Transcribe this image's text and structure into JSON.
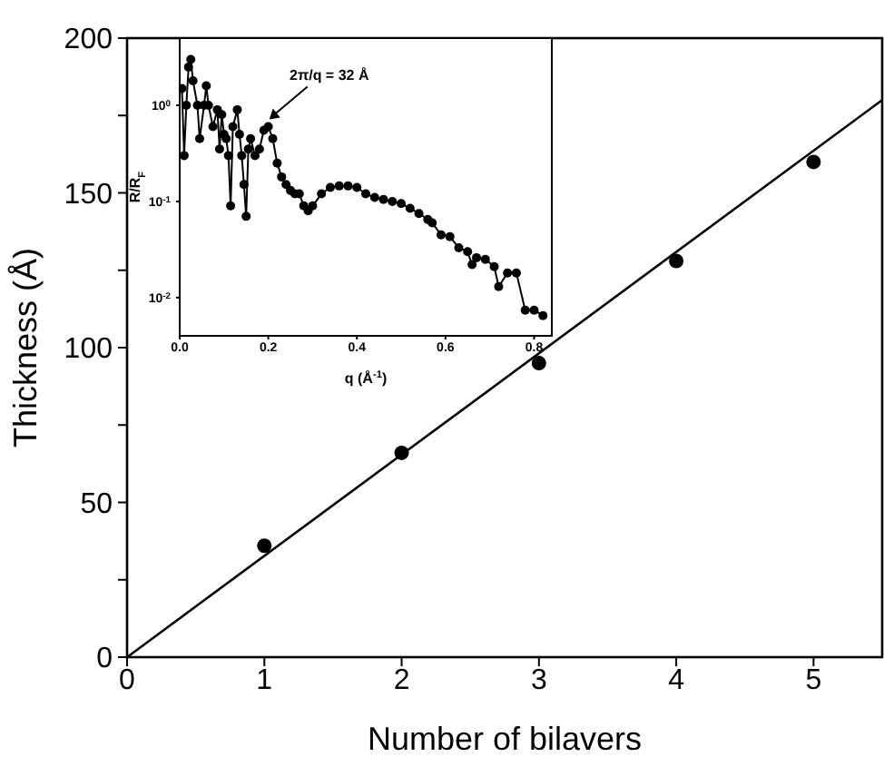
{
  "chart_data": [
    {
      "type": "scatter",
      "xlabel": "Number of bilavers",
      "ylabel": "Thickness (Å)",
      "xlim": [
        0,
        5.5
      ],
      "xticks": [
        0,
        1,
        2,
        3,
        4,
        5
      ],
      "ylim": [
        0,
        200
      ],
      "yticks": [
        0,
        {
          "value": 25,
          "label": null
        },
        50,
        {
          "value": 75,
          "label": null
        },
        100,
        {
          "value": 125,
          "label": null
        },
        150,
        {
          "value": 175,
          "label": null
        },
        200
      ],
      "marker": "circle",
      "series": [
        {
          "color": "#000000",
          "x": [
            1,
            2,
            3,
            4,
            5
          ],
          "values": [
            36,
            66,
            95,
            128,
            160
          ]
        },
        {
          "type": "line",
          "color": "#000000",
          "marker": "none",
          "x": [
            0,
            5.5
          ],
          "values": [
            0,
            180
          ]
        }
      ]
    },
    {
      "type": "line",
      "xlabel": "q (Å$^{-1}$)",
      "ylabel": "R/R$_{F}$",
      "log": "y",
      "xlim": [
        0,
        0.84
      ],
      "xticks": [
        {
          "value": 0,
          "label": "0.0"
        },
        0.2,
        0.4,
        0.6,
        0.8
      ],
      "ylim": [
        0.004,
        5
      ],
      "yticks": [
        {
          "value": 0.01,
          "label": "10$^{-2}$"
        },
        {
          "value": 0.1,
          "label": "10$^{-1}$"
        },
        {
          "value": 1,
          "label": "10$^{0}$"
        }
      ],
      "marker": "circle",
      "annotations": [
        {
          "text": "2π/q = 32 Å",
          "x": 0.19,
          "y": 0.6
        }
      ],
      "series": [
        {
          "color": "#000000",
          "x": [
            0.005,
            0.01,
            0.015,
            0.02,
            0.025,
            0.03,
            0.04,
            0.045,
            0.055,
            0.06,
            0.065,
            0.075,
            0.085,
            0.09,
            0.095,
            0.1,
            0.105,
            0.11,
            0.115,
            0.12,
            0.13,
            0.135,
            0.14,
            0.145,
            0.15,
            0.155,
            0.16,
            0.17,
            0.18,
            0.19,
            0.2,
            0.21,
            0.22,
            0.23,
            0.24,
            0.25,
            0.26,
            0.27,
            0.28,
            0.29,
            0.3,
            0.32,
            0.34,
            0.36,
            0.38,
            0.4,
            0.42,
            0.44,
            0.46,
            0.48,
            0.5,
            0.52,
            0.54,
            0.56,
            0.57,
            0.59,
            0.61,
            0.63,
            0.65,
            0.66,
            0.67,
            0.69,
            0.71,
            0.72,
            0.74,
            0.76,
            0.78,
            0.8,
            0.82
          ],
          "values": [
            1.5,
            0.3,
            1.0,
            2.5,
            3.0,
            1.8,
            1.0,
            0.45,
            1.0,
            1.6,
            1.0,
            0.6,
            0.9,
            0.35,
            0.8,
            0.5,
            0.45,
            0.3,
            0.09,
            0.6,
            0.9,
            0.5,
            0.3,
            0.15,
            0.07,
            0.35,
            0.45,
            0.3,
            0.35,
            0.55,
            0.6,
            0.45,
            0.25,
            0.18,
            0.15,
            0.13,
            0.12,
            0.12,
            0.09,
            0.08,
            0.09,
            0.12,
            0.14,
            0.145,
            0.145,
            0.14,
            0.12,
            0.11,
            0.105,
            0.1,
            0.095,
            0.085,
            0.075,
            0.065,
            0.06,
            0.045,
            0.043,
            0.033,
            0.03,
            0.022,
            0.026,
            0.025,
            0.021,
            0.013,
            0.018,
            0.018,
            0.0074,
            0.0074,
            0.0065
          ]
        }
      ]
    }
  ]
}
